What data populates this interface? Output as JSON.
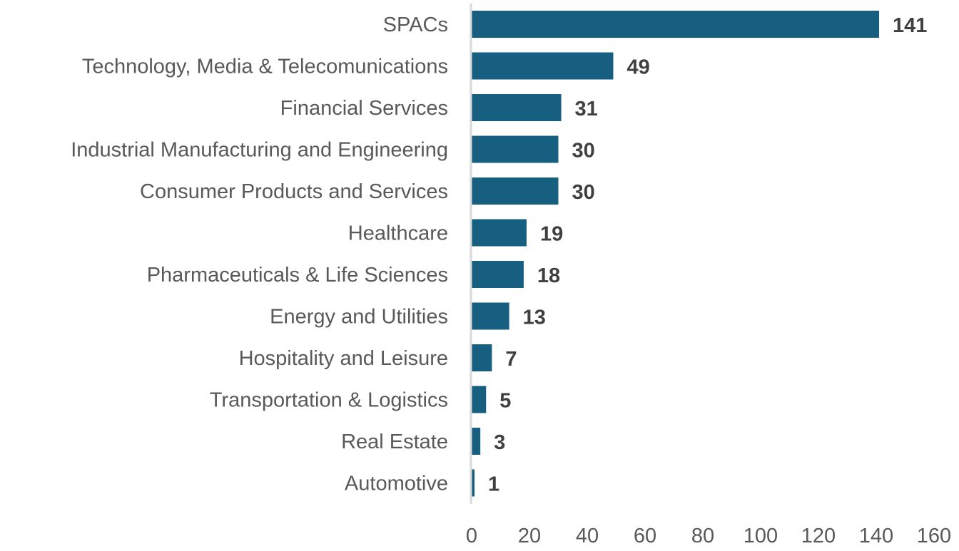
{
  "chart_data": {
    "type": "bar",
    "orientation": "horizontal",
    "categories": [
      "SPACs",
      "Technology, Media & Telecomunications",
      "Financial Services",
      "Industrial Manufacturing and Engineering",
      "Consumer Products and Services",
      "Healthcare",
      "Pharmaceuticals & Life Sciences",
      "Energy and Utilities",
      "Hospitality and Leisure",
      "Transportation & Logistics",
      "Real Estate",
      "Automotive"
    ],
    "values": [
      141,
      49,
      31,
      30,
      30,
      19,
      18,
      13,
      7,
      5,
      3,
      1
    ],
    "xlim": [
      0,
      160
    ],
    "xticks": [
      0,
      20,
      40,
      60,
      80,
      100,
      120,
      140,
      160
    ],
    "title": "",
    "xlabel": "",
    "ylabel": "",
    "grid": false,
    "data_labels": true,
    "bar_color": "#175f80",
    "axis_color": "#d9d9d9"
  }
}
